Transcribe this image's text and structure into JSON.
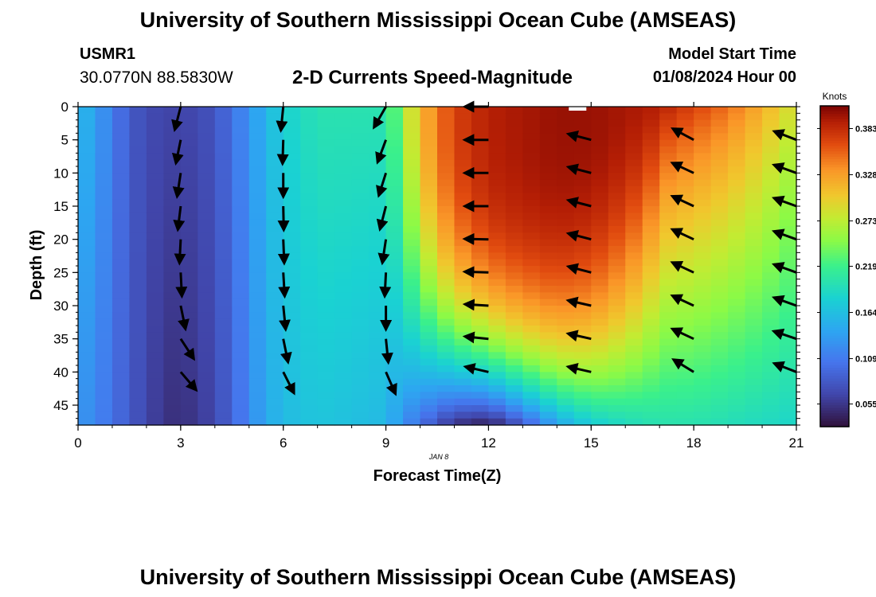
{
  "header": {
    "title": "University of Southern Mississippi Ocean Cube (AMSEAS)",
    "station": "USMR1",
    "coordinates": "30.0770N  88.5830W",
    "subtitle": "2-D Currents Speed-Magnitude",
    "model_start_label": "Model Start Time",
    "model_start_value": "01/08/2024 Hour 00"
  },
  "footer": {
    "title": "University of Southern Mississippi Ocean Cube (AMSEAS)"
  },
  "chart_data": {
    "type": "heatmap",
    "title": "2-D Currents Speed-Magnitude",
    "xlabel": "Forecast Time(Z)",
    "ylabel": "Depth (ft)",
    "date_label": "JAN 8",
    "xlim": [
      0,
      21
    ],
    "ylim": [
      0,
      48
    ],
    "x_ticks": [
      0,
      3,
      6,
      9,
      12,
      15,
      18,
      21
    ],
    "y_ticks": [
      0,
      5,
      10,
      15,
      20,
      25,
      30,
      35,
      40,
      45
    ],
    "colorbar": {
      "label": "Knots",
      "min": 0.028,
      "max": 0.41,
      "ticks": [
        "0.383",
        "0.328",
        "0.273",
        "0.219",
        "0.164",
        "0.109",
        "0.055"
      ]
    },
    "speed_profile": [
      {
        "time": 0,
        "top": 0.16,
        "bottom": 0.13
      },
      {
        "time": 0.5,
        "top": 0.14,
        "bottom": 0.12
      },
      {
        "time": 1,
        "top": 0.11,
        "bottom": 0.1
      },
      {
        "time": 1.5,
        "top": 0.085,
        "bottom": 0.085
      },
      {
        "time": 2,
        "top": 0.07,
        "bottom": 0.065
      },
      {
        "time": 2.8,
        "top": 0.065,
        "bottom": 0.05
      },
      {
        "time": 3.5,
        "top": 0.068,
        "bottom": 0.055
      },
      {
        "time": 4,
        "top": 0.08,
        "bottom": 0.07
      },
      {
        "time": 4.5,
        "top": 0.1,
        "bottom": 0.09
      },
      {
        "time": 5,
        "top": 0.13,
        "bottom": 0.12
      },
      {
        "time": 5.5,
        "top": 0.155,
        "bottom": 0.145
      },
      {
        "time": 6,
        "top": 0.18,
        "bottom": 0.16
      },
      {
        "time": 7,
        "top": 0.2,
        "bottom": 0.17
      },
      {
        "time": 8,
        "top": 0.2,
        "bottom": 0.165
      },
      {
        "time": 8.8,
        "top": 0.2,
        "bottom": 0.16
      },
      {
        "time": 9.3,
        "top": 0.23,
        "bottom": 0.14
      },
      {
        "time": 9.8,
        "top": 0.29,
        "bottom": 0.11
      },
      {
        "time": 10.4,
        "top": 0.34,
        "bottom": 0.08
      },
      {
        "time": 11,
        "top": 0.37,
        "bottom": 0.05
      },
      {
        "time": 12,
        "top": 0.39,
        "bottom": 0.035
      },
      {
        "time": 13,
        "top": 0.395,
        "bottom": 0.08
      },
      {
        "time": 14,
        "top": 0.4,
        "bottom": 0.14
      },
      {
        "time": 15,
        "top": 0.4,
        "bottom": 0.175
      },
      {
        "time": 16,
        "top": 0.395,
        "bottom": 0.19
      },
      {
        "time": 17,
        "top": 0.39,
        "bottom": 0.2
      },
      {
        "time": 18,
        "top": 0.37,
        "bottom": 0.2
      },
      {
        "time": 19,
        "top": 0.35,
        "bottom": 0.195
      },
      {
        "time": 20,
        "top": 0.32,
        "bottom": 0.19
      },
      {
        "time": 21,
        "top": 0.28,
        "bottom": 0.185
      }
    ],
    "vector_columns": [
      {
        "time": 3,
        "depths": [
          0,
          5,
          10,
          15,
          20,
          25,
          30,
          35,
          40
        ],
        "u": [
          -0.25,
          -0.2,
          -0.15,
          -0.12,
          -0.05,
          0.05,
          0.2,
          0.55,
          0.65
        ],
        "v": [
          -0.97,
          -0.98,
          -0.99,
          -0.99,
          -1.0,
          -1.0,
          -0.98,
          -0.84,
          -0.76
        ]
      },
      {
        "time": 6,
        "depths": [
          0,
          5,
          10,
          15,
          20,
          25,
          30,
          35,
          40
        ],
        "u": [
          -0.1,
          -0.03,
          0.0,
          0.02,
          0.04,
          0.06,
          0.1,
          0.2,
          0.45
        ],
        "v": [
          -1.0,
          -1.0,
          -1.0,
          -1.0,
          -1.0,
          -1.0,
          -1.0,
          -0.98,
          -0.89
        ]
      },
      {
        "time": 9,
        "depths": [
          0,
          5,
          10,
          15,
          20,
          25,
          30,
          35,
          40
        ],
        "u": [
          -0.5,
          -0.35,
          -0.3,
          -0.25,
          -0.15,
          -0.05,
          0.0,
          0.1,
          0.4
        ],
        "v": [
          -0.87,
          -0.94,
          -0.95,
          -0.97,
          -0.99,
          -1.0,
          -1.0,
          -0.99,
          -0.92
        ]
      },
      {
        "time": 12,
        "depths": [
          0,
          5,
          10,
          15,
          20,
          25,
          30,
          35,
          40
        ],
        "u": [
          -1.0,
          -1.0,
          -1.0,
          -1.0,
          -1.0,
          -1.0,
          -0.99,
          -0.99,
          -0.97
        ],
        "v": [
          0.0,
          0.0,
          0.0,
          0.0,
          0.02,
          0.03,
          0.06,
          0.1,
          0.22
        ]
      },
      {
        "time": 15,
        "depths": [
          5,
          10,
          15,
          20,
          25,
          30,
          35,
          40
        ],
        "u": [
          -0.96,
          -0.96,
          -0.96,
          -0.96,
          -0.96,
          -0.97,
          -0.97,
          -0.97
        ],
        "v": [
          0.25,
          0.25,
          0.25,
          0.25,
          0.25,
          0.22,
          0.22,
          0.22
        ]
      },
      {
        "time": 18,
        "depths": [
          5,
          10,
          15,
          20,
          25,
          30,
          35,
          40
        ],
        "u": [
          -0.88,
          -0.9,
          -0.9,
          -0.9,
          -0.9,
          -0.9,
          -0.9,
          -0.85
        ],
        "v": [
          0.47,
          0.42,
          0.42,
          0.42,
          0.42,
          0.42,
          0.42,
          0.52
        ]
      },
      {
        "time": 21,
        "depths": [
          5,
          10,
          15,
          20,
          25,
          30,
          35,
          40
        ],
        "u": [
          -0.93,
          -0.94,
          -0.94,
          -0.94,
          -0.94,
          -0.94,
          -0.95,
          -0.93
        ],
        "v": [
          0.36,
          0.34,
          0.34,
          0.34,
          0.34,
          0.34,
          0.32,
          0.36
        ]
      }
    ]
  }
}
